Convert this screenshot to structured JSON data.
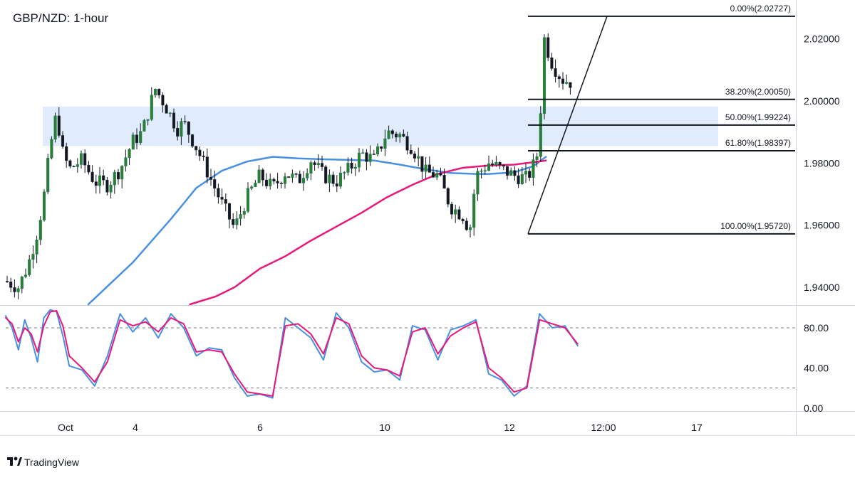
{
  "chart_data": [
    {
      "type": "candlestick",
      "title": "GBP/NZD: 1-hour",
      "x_ticks": [
        "Oct",
        "4",
        "6",
        "10",
        "12",
        "12:00",
        "17"
      ],
      "y_ticks": [
        "1.94000",
        "1.96000",
        "1.98000",
        "2.00000",
        "2.02000"
      ],
      "ylim": [
        1.9345,
        2.0325
      ],
      "resistance_zone": [
        1.9855,
        1.9982
      ],
      "fibonacci": [
        {
          "label": "0.00%(2.02727)",
          "value": 2.02727
        },
        {
          "label": "38.20%(2.00050)",
          "value": 2.0005
        },
        {
          "label": "50.00%(1.99224)",
          "value": 1.99224
        },
        {
          "label": "61.80%(1.98397)",
          "value": 1.98397
        },
        {
          "label": "100.00%(1.95720)",
          "value": 1.9572
        }
      ],
      "ma_series": [
        {
          "color": "#4a90e2",
          "x": [
            0.13,
            0.2,
            0.26,
            0.3,
            0.34,
            0.38,
            0.42,
            0.46,
            0.5,
            0.54,
            0.58,
            0.62,
            0.66,
            0.7,
            0.74,
            0.76,
            0.8,
            0.83,
            0.85
          ],
          "values": [
            1.9345,
            1.948,
            1.962,
            1.972,
            1.9775,
            1.9805,
            1.982,
            1.9815,
            1.9812,
            1.981,
            1.9808,
            1.9795,
            1.978,
            1.9768,
            1.9765,
            1.9765,
            1.977,
            1.979,
            1.982
          ]
        },
        {
          "color": "#e8197a",
          "x": [
            0.29,
            0.33,
            0.36,
            0.4,
            0.44,
            0.48,
            0.52,
            0.56,
            0.6,
            0.64,
            0.68,
            0.72,
            0.76,
            0.8,
            0.85
          ],
          "values": [
            1.9345,
            1.937,
            1.94,
            1.946,
            1.95,
            1.955,
            1.9595,
            1.964,
            1.969,
            1.973,
            1.9765,
            1.9785,
            1.9792,
            1.9795,
            1.9808
          ]
        }
      ],
      "price_series": {
        "x": [
          0.0,
          0.02,
          0.035,
          0.05,
          0.06,
          0.07,
          0.08,
          0.09,
          0.1,
          0.12,
          0.14,
          0.16,
          0.18,
          0.2,
          0.215,
          0.225,
          0.235,
          0.25,
          0.26,
          0.27,
          0.28,
          0.29,
          0.3,
          0.32,
          0.34,
          0.36,
          0.38,
          0.4,
          0.42,
          0.44,
          0.46,
          0.48,
          0.5,
          0.52,
          0.54,
          0.56,
          0.58,
          0.6,
          0.62,
          0.64,
          0.66,
          0.68,
          0.7,
          0.72,
          0.73,
          0.74,
          0.76,
          0.78,
          0.8,
          0.82,
          0.83,
          0.84,
          0.845,
          0.85,
          0.86,
          0.875,
          0.89
        ],
        "values": [
          1.942,
          1.94,
          1.947,
          1.958,
          1.969,
          1.985,
          1.996,
          1.983,
          1.978,
          1.981,
          1.974,
          1.973,
          1.978,
          1.987,
          1.99,
          1.997,
          2.004,
          1.999,
          1.995,
          1.991,
          1.993,
          1.989,
          1.985,
          1.976,
          1.967,
          1.959,
          1.969,
          1.976,
          1.972,
          1.977,
          1.974,
          1.981,
          1.976,
          1.974,
          1.978,
          1.983,
          1.981,
          1.99,
          1.989,
          1.985,
          1.977,
          1.976,
          1.966,
          1.963,
          1.958,
          1.976,
          1.98,
          1.978,
          1.976,
          1.975,
          1.979,
          1.985,
          2.022,
          2.018,
          2.012,
          2.007,
          2.006
        ]
      }
    },
    {
      "type": "line",
      "title": "",
      "y_ticks": [
        "0.00",
        "40.00",
        "80.00"
      ],
      "ylim": [
        -3,
        102
      ],
      "levels": [
        20,
        80
      ],
      "series": [
        {
          "color": "#4a90e2",
          "x": [
            0.0,
            0.01,
            0.02,
            0.03,
            0.04,
            0.05,
            0.06,
            0.07,
            0.08,
            0.09,
            0.1,
            0.12,
            0.14,
            0.16,
            0.18,
            0.2,
            0.22,
            0.24,
            0.26,
            0.28,
            0.3,
            0.32,
            0.34,
            0.36,
            0.38,
            0.4,
            0.42,
            0.44,
            0.46,
            0.48,
            0.5,
            0.52,
            0.54,
            0.56,
            0.58,
            0.6,
            0.62,
            0.64,
            0.66,
            0.68,
            0.7,
            0.72,
            0.74,
            0.76,
            0.78,
            0.8,
            0.82,
            0.84,
            0.86,
            0.88,
            0.9
          ],
          "values": [
            92,
            80,
            58,
            88,
            70,
            46,
            90,
            98,
            96,
            72,
            42,
            38,
            22,
            52,
            94,
            76,
            90,
            70,
            94,
            80,
            52,
            60,
            58,
            30,
            12,
            14,
            10,
            90,
            80,
            70,
            48,
            95,
            80,
            46,
            36,
            38,
            28,
            82,
            78,
            48,
            78,
            82,
            88,
            34,
            28,
            12,
            22,
            94,
            80,
            82,
            62
          ]
        },
        {
          "color": "#e8197a",
          "x": [
            0.0,
            0.01,
            0.02,
            0.03,
            0.04,
            0.05,
            0.06,
            0.07,
            0.08,
            0.09,
            0.1,
            0.12,
            0.14,
            0.16,
            0.18,
            0.2,
            0.22,
            0.24,
            0.26,
            0.28,
            0.3,
            0.32,
            0.34,
            0.36,
            0.38,
            0.4,
            0.42,
            0.44,
            0.46,
            0.48,
            0.5,
            0.52,
            0.54,
            0.56,
            0.58,
            0.6,
            0.62,
            0.64,
            0.66,
            0.68,
            0.7,
            0.72,
            0.74,
            0.76,
            0.78,
            0.8,
            0.82,
            0.84,
            0.86,
            0.88,
            0.9
          ],
          "values": [
            90,
            84,
            66,
            80,
            74,
            56,
            82,
            96,
            97,
            82,
            52,
            40,
            26,
            46,
            88,
            82,
            86,
            76,
            90,
            84,
            56,
            58,
            56,
            34,
            16,
            14,
            12,
            82,
            84,
            74,
            54,
            90,
            84,
            52,
            40,
            38,
            32,
            76,
            80,
            54,
            72,
            80,
            86,
            40,
            30,
            16,
            20,
            88,
            84,
            80,
            64
          ]
        }
      ]
    }
  ],
  "brand": "TradingView"
}
